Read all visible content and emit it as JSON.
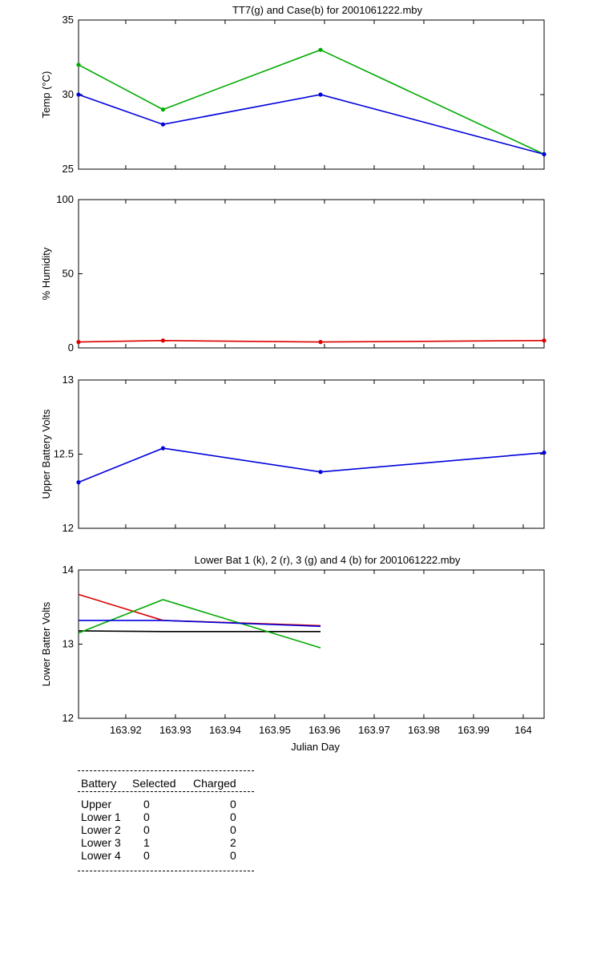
{
  "chart_data": [
    {
      "type": "line",
      "title": "TT7(g) and Case(b) for 2001061222.mby",
      "xlabel": "",
      "ylabel": "Temp  (°C)",
      "xlim": [
        163.9105,
        164.0042
      ],
      "ylim": [
        25,
        35
      ],
      "yticks": [
        25,
        30,
        35
      ],
      "grid": false,
      "series": [
        {
          "color": "#00aa00",
          "x": [
            163.9105,
            163.9275,
            163.9592,
            164.0042
          ],
          "y": [
            32,
            29,
            33,
            26
          ]
        },
        {
          "color": "#0000dd",
          "x": [
            163.9105,
            163.9275,
            163.9592,
            164.0042
          ],
          "y": [
            30,
            28,
            30,
            26
          ]
        }
      ]
    },
    {
      "type": "line",
      "title": "",
      "xlabel": "",
      "ylabel": "% Humidity",
      "xlim": [
        163.9105,
        164.0042
      ],
      "ylim": [
        0,
        100
      ],
      "yticks": [
        0,
        50,
        100
      ],
      "grid": false,
      "series": [
        {
          "color": "#dd0000",
          "x": [
            163.9105,
            163.9275,
            163.9592,
            164.0042
          ],
          "y": [
            4,
            5,
            4,
            5
          ]
        }
      ]
    },
    {
      "type": "line",
      "title": "",
      "xlabel": "",
      "ylabel": "Upper Battery Volts",
      "xlim": [
        163.9105,
        164.0042
      ],
      "ylim": [
        12,
        13
      ],
      "yticks": [
        12,
        12.5,
        13
      ],
      "ytick_labels": [
        "12",
        "12.5",
        "13"
      ],
      "grid": false,
      "series": [
        {
          "color": "#0000dd",
          "x": [
            163.9105,
            163.9275,
            163.9592,
            164.0042
          ],
          "y": [
            12.31,
            12.54,
            12.38,
            12.51
          ]
        }
      ]
    },
    {
      "type": "line",
      "title": "Lower Bat 1 (k), 2 (r), 3 (g) and 4 (b) for 2001061222.mby",
      "xlabel": "Julian Day",
      "ylabel": "Lower Batter Volts",
      "xlim": [
        163.9105,
        164.0042
      ],
      "ylim": [
        12,
        14
      ],
      "yticks": [
        12,
        13,
        14
      ],
      "xticks": [
        163.92,
        163.93,
        163.94,
        163.95,
        163.96,
        163.97,
        163.98,
        163.99,
        164
      ],
      "xtick_labels": [
        "163.92",
        "163.93",
        "163.94",
        "163.95",
        "163.96",
        "163.97",
        "163.98",
        "163.99",
        "164"
      ],
      "grid": false,
      "series": [
        {
          "color": "#000000",
          "x": [
            163.9105,
            163.9275,
            163.9592
          ],
          "y": [
            13.18,
            13.17,
            13.17
          ]
        },
        {
          "color": "#dd0000",
          "x": [
            163.9105,
            163.9275,
            163.9592
          ],
          "y": [
            13.67,
            13.32,
            13.25
          ]
        },
        {
          "color": "#00aa00",
          "x": [
            163.9105,
            163.9275,
            163.9592
          ],
          "y": [
            13.15,
            13.6,
            12.95
          ]
        },
        {
          "color": "#0000dd",
          "x": [
            163.9105,
            163.9275,
            163.9592
          ],
          "y": [
            13.32,
            13.32,
            13.24
          ]
        }
      ]
    }
  ],
  "battery_table": {
    "headers": [
      "Battery",
      "Selected",
      "Charged"
    ],
    "rows": [
      {
        "battery": "Upper",
        "selected": "0",
        "charged": "0"
      },
      {
        "battery": "Lower 1",
        "selected": "0",
        "charged": "0"
      },
      {
        "battery": "Lower 2",
        "selected": "0",
        "charged": "0"
      },
      {
        "battery": "Lower 3",
        "selected": "1",
        "charged": "2"
      },
      {
        "battery": "Lower 4",
        "selected": "0",
        "charged": "0"
      }
    ]
  }
}
